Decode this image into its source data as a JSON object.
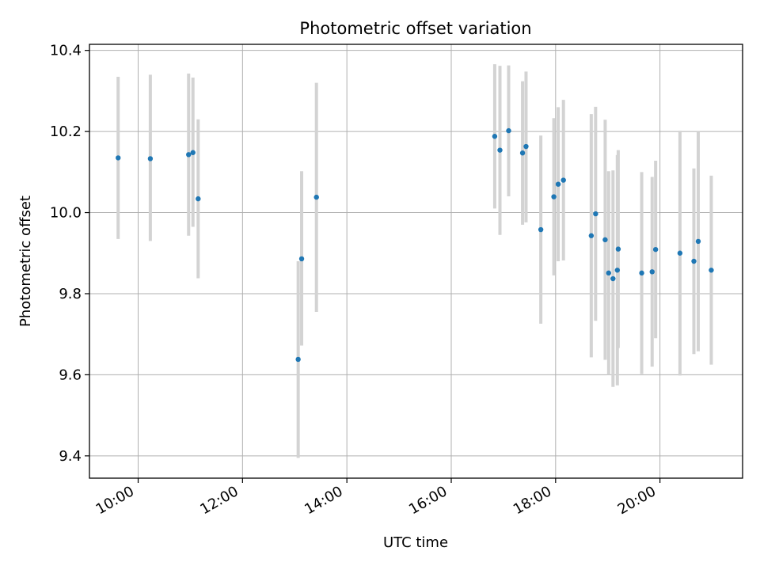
{
  "chart_data": {
    "type": "scatter",
    "title": "Photometric offset variation",
    "xlabel": "UTC time",
    "ylabel": "Photometric offset",
    "xlim": [
      "09:04",
      "21:35"
    ],
    "ylim": [
      9.345,
      10.415
    ],
    "x_ticks": [
      "10:00",
      "12:00",
      "14:00",
      "16:00",
      "18:00",
      "20:00"
    ],
    "y_ticks": [
      9.4,
      9.6,
      9.8,
      10.0,
      10.2,
      10.4
    ],
    "grid": true,
    "marker_color": "#1f77b4",
    "errorbar_color": "#d3d3d3",
    "points": [
      {
        "t": "09:37",
        "y": 10.135,
        "lo": 9.935,
        "hi": 10.335
      },
      {
        "t": "10:14",
        "y": 10.133,
        "lo": 9.93,
        "hi": 10.34
      },
      {
        "t": "10:58",
        "y": 10.143,
        "lo": 9.943,
        "hi": 10.343
      },
      {
        "t": "11:03",
        "y": 10.148,
        "lo": 9.965,
        "hi": 10.333
      },
      {
        "t": "11:09",
        "y": 10.034,
        "lo": 9.838,
        "hi": 10.23
      },
      {
        "t": "13:04",
        "y": 9.638,
        "lo": 9.395,
        "hi": 9.88
      },
      {
        "t": "13:08",
        "y": 9.886,
        "lo": 9.672,
        "hi": 10.102
      },
      {
        "t": "13:25",
        "y": 10.038,
        "lo": 9.755,
        "hi": 10.32
      },
      {
        "t": "16:50",
        "y": 10.188,
        "lo": 10.01,
        "hi": 10.366
      },
      {
        "t": "16:56",
        "y": 10.154,
        "lo": 9.945,
        "hi": 10.362
      },
      {
        "t": "17:06",
        "y": 10.202,
        "lo": 10.04,
        "hi": 10.363
      },
      {
        "t": "17:22",
        "y": 10.147,
        "lo": 9.97,
        "hi": 10.324
      },
      {
        "t": "17:26",
        "y": 10.163,
        "lo": 9.976,
        "hi": 10.348
      },
      {
        "t": "17:43",
        "y": 9.958,
        "lo": 9.726,
        "hi": 10.19
      },
      {
        "t": "17:58",
        "y": 10.039,
        "lo": 9.845,
        "hi": 10.233
      },
      {
        "t": "18:03",
        "y": 10.07,
        "lo": 9.88,
        "hi": 10.26
      },
      {
        "t": "18:09",
        "y": 10.08,
        "lo": 9.882,
        "hi": 10.278
      },
      {
        "t": "18:41",
        "y": 9.943,
        "lo": 9.643,
        "hi": 10.243
      },
      {
        "t": "18:46",
        "y": 9.997,
        "lo": 9.733,
        "hi": 10.261
      },
      {
        "t": "18:57",
        "y": 9.933,
        "lo": 9.637,
        "hi": 10.229
      },
      {
        "t": "19:01",
        "y": 9.851,
        "lo": 9.6,
        "hi": 10.102
      },
      {
        "t": "19:06",
        "y": 9.837,
        "lo": 9.57,
        "hi": 10.104
      },
      {
        "t": "19:11",
        "y": 9.858,
        "lo": 9.574,
        "hi": 10.142
      },
      {
        "t": "19:12",
        "y": 9.91,
        "lo": 9.666,
        "hi": 10.154
      },
      {
        "t": "19:39",
        "y": 9.851,
        "lo": 9.602,
        "hi": 10.1
      },
      {
        "t": "19:51",
        "y": 9.854,
        "lo": 9.62,
        "hi": 10.088
      },
      {
        "t": "19:55",
        "y": 9.909,
        "lo": 9.69,
        "hi": 10.128
      },
      {
        "t": "20:23",
        "y": 9.9,
        "lo": 9.598,
        "hi": 10.202
      },
      {
        "t": "20:39",
        "y": 9.88,
        "lo": 9.651,
        "hi": 10.109
      },
      {
        "t": "20:44",
        "y": 9.929,
        "lo": 9.658,
        "hi": 10.2
      },
      {
        "t": "20:59",
        "y": 9.858,
        "lo": 9.625,
        "hi": 10.091
      }
    ]
  }
}
